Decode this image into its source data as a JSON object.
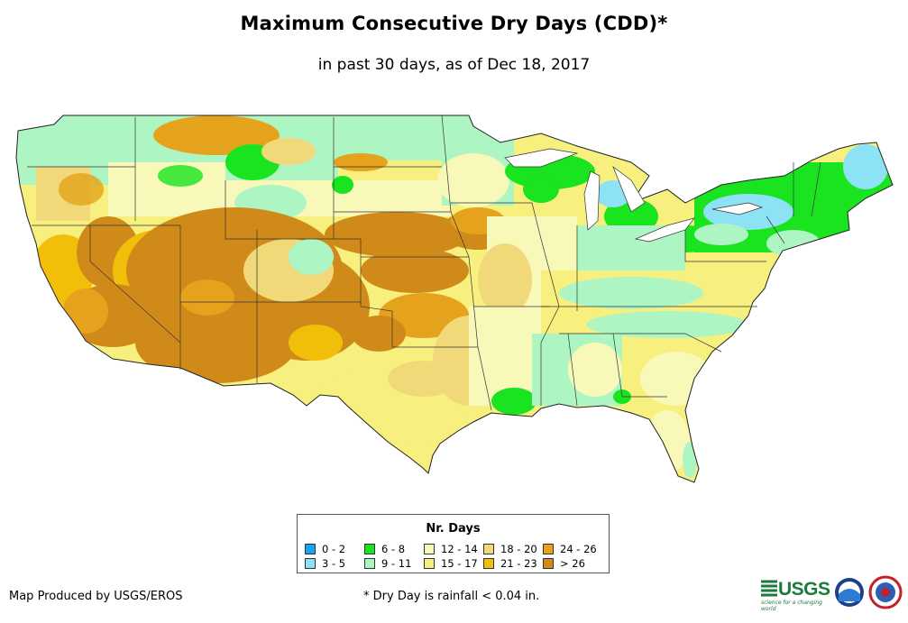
{
  "title": "Maximum Consecutive Dry Days (CDD)*",
  "subtitle": "in past 30 days, as of Dec 18, 2017",
  "legend": {
    "title": "Nr. Days",
    "items": [
      {
        "label": "0 - 2",
        "color": "#1aa3f5"
      },
      {
        "label": "3 - 5",
        "color": "#8ee2f5"
      },
      {
        "label": "6 - 8",
        "color": "#19e41f"
      },
      {
        "label": "9 - 11",
        "color": "#aef5c4"
      },
      {
        "label": "12 - 14",
        "color": "#f8f8b8"
      },
      {
        "label": "15 - 17",
        "color": "#f7ef7e"
      },
      {
        "label": "18 - 20",
        "color": "#f1d97a"
      },
      {
        "label": "21 - 23",
        "color": "#f1bf0a"
      },
      {
        "label": "24 - 26",
        "color": "#e5a21c"
      },
      {
        "label": "> 26",
        "color": "#d08a1a"
      }
    ]
  },
  "credit": "Map Produced by USGS/EROS",
  "footnote": "* Dry Day is rainfall < 0.04 in.",
  "logos": {
    "usgs": "USGS",
    "usgs_tagline": "science for a changing world",
    "noaa": "noaa-logo",
    "nws": "nws-logo"
  }
}
